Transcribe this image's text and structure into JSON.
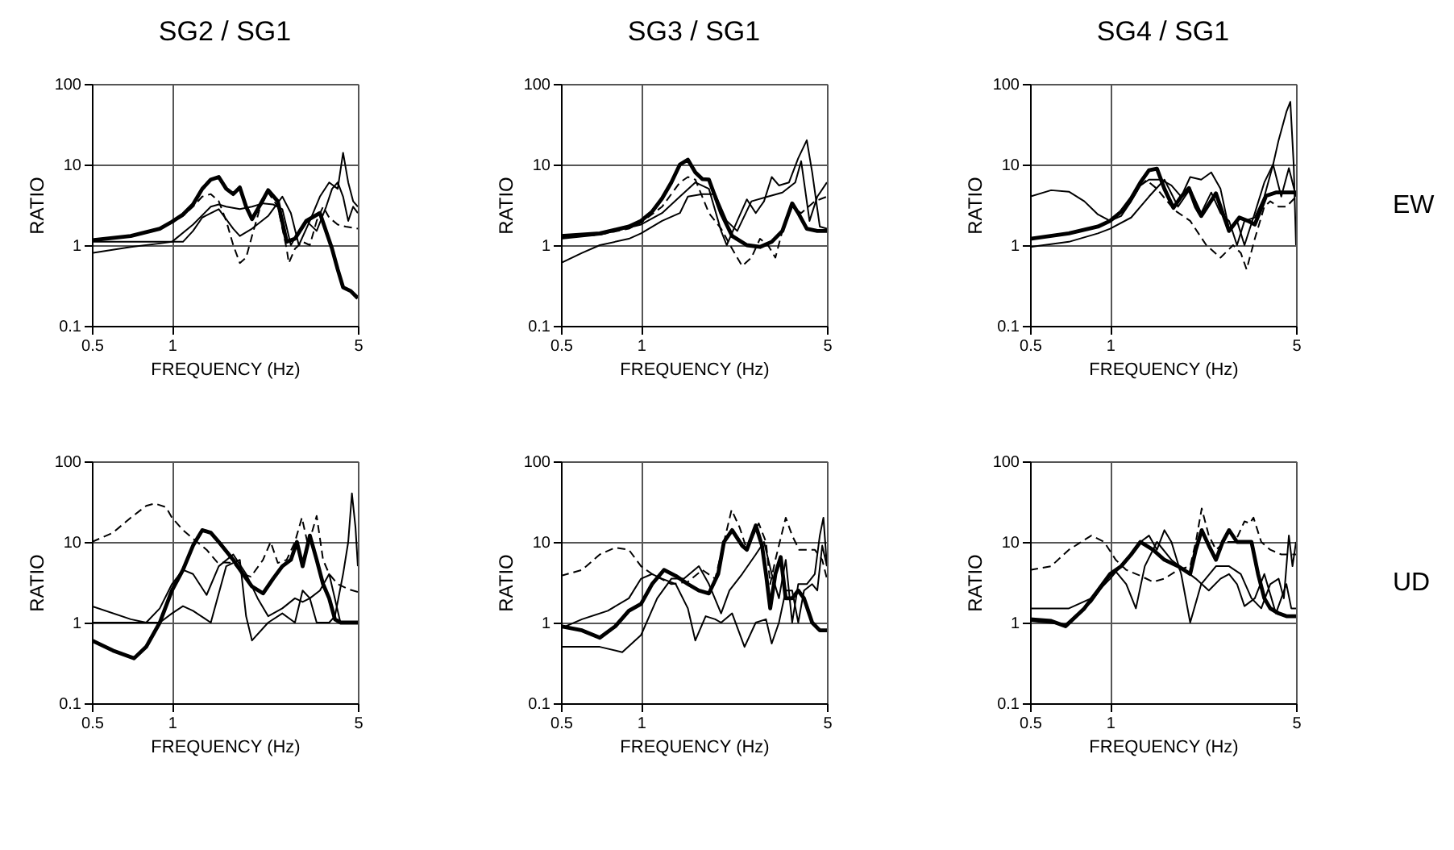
{
  "chart_data": [
    {
      "type": "line",
      "title": "SG2 / SG1",
      "xlabel": "FREQUENCY (Hz)",
      "ylabel": "RATIO",
      "log": "xy",
      "grid": true,
      "xlim": [
        0.5,
        5
      ],
      "ylim": [
        0.1,
        100
      ],
      "xticks": [
        0.5,
        1,
        5
      ],
      "yticks": [
        0.1,
        1,
        10,
        100
      ],
      "series": [
        {
          "color": "#000000",
          "line_style": "solid",
          "x": [
            0.5,
            0.7,
            0.9,
            1.0,
            1.1,
            1.2,
            1.3,
            1.4,
            1.5,
            1.6,
            1.7,
            1.8,
            1.9,
            2.0,
            2.15,
            2.3,
            2.5,
            2.7,
            2.9,
            3.2,
            3.6,
            4.0,
            4.2,
            4.4,
            4.7,
            5.0
          ],
          "values": [
            1.15,
            1.3,
            1.6,
            1.95,
            2.4,
            3.2,
            5.0,
            6.5,
            7.0,
            5.0,
            4.3,
            5.2,
            3.0,
            2.1,
            3.2,
            4.8,
            3.5,
            1.1,
            1.2,
            2.0,
            2.5,
            0.9,
            0.5,
            0.3,
            0.27,
            0.22
          ]
        },
        {
          "color": "#000000",
          "line_style": "dashed",
          "x": [
            0.5,
            0.7,
            0.9,
            1.0,
            1.1,
            1.2,
            1.3,
            1.4,
            1.5,
            1.6,
            1.7,
            1.8,
            1.9,
            2.0,
            2.15,
            2.3,
            2.5,
            2.7,
            2.75,
            2.9,
            3.1,
            3.3,
            3.5,
            3.7,
            3.9,
            4.2,
            4.5,
            5.0
          ],
          "values": [
            1.15,
            1.3,
            1.6,
            1.9,
            2.3,
            3.0,
            4.0,
            4.3,
            3.5,
            2.0,
            1.0,
            0.6,
            0.7,
            1.3,
            3.0,
            4.5,
            3.0,
            0.9,
            0.6,
            0.9,
            1.1,
            1.0,
            2.0,
            3.0,
            2.2,
            1.8,
            1.7,
            1.6
          ]
        },
        {
          "color": "#000000",
          "line_style": "solid",
          "x": [
            0.5,
            0.7,
            0.9,
            1.0,
            1.2,
            1.4,
            1.5,
            1.6,
            1.8,
            2.0,
            2.2,
            2.4,
            2.6,
            2.8,
            3.0,
            3.2,
            3.5,
            3.8,
            4.0,
            4.2,
            4.4,
            4.6,
            4.8,
            5.0
          ],
          "values": [
            0.8,
            0.95,
            1.05,
            1.1,
            1.8,
            3.0,
            3.2,
            3.0,
            2.8,
            3.0,
            3.3,
            3.2,
            2.8,
            1.0,
            1.5,
            2.0,
            1.5,
            3.0,
            5.0,
            6.0,
            4.0,
            2.0,
            3.0,
            2.5
          ]
        },
        {
          "color": "#000000",
          "line_style": "solid",
          "x": [
            0.5,
            0.8,
            1.0,
            1.1,
            1.2,
            1.3,
            1.5,
            1.7,
            1.8,
            2.0,
            2.3,
            2.6,
            2.8,
            3.0,
            3.3,
            3.6,
            3.9,
            4.2,
            4.4,
            4.6,
            4.8,
            5.0
          ],
          "values": [
            1.1,
            1.1,
            1.1,
            1.1,
            1.5,
            2.2,
            2.8,
            1.6,
            1.3,
            1.6,
            2.3,
            4.0,
            2.5,
            1.0,
            2.0,
            4.0,
            6.0,
            5.0,
            14.0,
            6.0,
            3.5,
            3.0
          ]
        }
      ]
    },
    {
      "type": "line",
      "title": "SG3 / SG1",
      "xlabel": "FREQUENCY (Hz)",
      "ylabel": "RATIO",
      "log": "xy",
      "grid": true,
      "xlim": [
        0.5,
        5
      ],
      "ylim": [
        0.1,
        100
      ],
      "xticks": [
        0.5,
        1,
        5
      ],
      "yticks": [
        0.1,
        1,
        10,
        100
      ],
      "series": [
        {
          "color": "#000000",
          "line_style": "solid",
          "x": [
            0.5,
            0.7,
            0.9,
            1.0,
            1.1,
            1.2,
            1.3,
            1.4,
            1.5,
            1.6,
            1.7,
            1.8,
            1.9,
            2.0,
            2.2,
            2.5,
            2.8,
            3.1,
            3.4,
            3.7,
            3.9,
            4.2,
            4.6,
            5.0
          ],
          "values": [
            1.3,
            1.4,
            1.7,
            2.0,
            2.6,
            3.8,
            6.0,
            10.0,
            11.5,
            8.0,
            6.6,
            6.5,
            4.0,
            2.5,
            1.3,
            1.0,
            0.95,
            1.1,
            1.5,
            3.3,
            2.5,
            1.6,
            1.5,
            1.5
          ]
        },
        {
          "color": "#000000",
          "line_style": "dashed",
          "x": [
            0.5,
            0.7,
            0.9,
            1.0,
            1.2,
            1.4,
            1.5,
            1.6,
            1.8,
            2.0,
            2.2,
            2.4,
            2.6,
            2.8,
            3.0,
            3.2,
            3.4,
            3.7,
            4.0,
            4.5,
            5.0
          ],
          "values": [
            1.25,
            1.35,
            1.6,
            1.9,
            3.0,
            6.0,
            7.0,
            6.5,
            2.5,
            1.6,
            0.9,
            0.55,
            0.7,
            1.2,
            1.0,
            0.7,
            1.5,
            3.0,
            2.5,
            3.5,
            4.0
          ]
        },
        {
          "color": "#000000",
          "line_style": "solid",
          "x": [
            0.5,
            0.6,
            0.7,
            0.9,
            1.0,
            1.2,
            1.4,
            1.5,
            1.7,
            1.9,
            2.1,
            2.3,
            2.6,
            3.0,
            3.4,
            3.8,
            4.0,
            4.3,
            4.6,
            5.0
          ],
          "values": [
            0.6,
            0.8,
            1.0,
            1.2,
            1.4,
            2.0,
            2.5,
            4.0,
            4.3,
            4.3,
            2.0,
            1.5,
            3.5,
            4.0,
            4.5,
            6.0,
            11.0,
            2.0,
            4.0,
            6.0
          ]
        },
        {
          "color": "#000000",
          "line_style": "solid",
          "x": [
            0.5,
            0.7,
            1.0,
            1.2,
            1.4,
            1.6,
            1.8,
            2.0,
            2.1,
            2.3,
            2.5,
            2.7,
            2.9,
            3.1,
            3.3,
            3.6,
            3.9,
            4.2,
            4.4,
            4.7,
            5.0
          ],
          "values": [
            1.2,
            1.35,
            1.8,
            2.5,
            4.0,
            6.0,
            5.0,
            1.5,
            1.0,
            2.0,
            3.7,
            2.5,
            3.5,
            7.0,
            5.5,
            6.0,
            12.0,
            20.0,
            8.0,
            1.7,
            1.6
          ]
        }
      ]
    },
    {
      "type": "line",
      "title": "SG4 / SG1",
      "xlabel": "FREQUENCY (Hz)",
      "ylabel": "RATIO",
      "log": "xy",
      "grid": true,
      "xlim": [
        0.5,
        5
      ],
      "ylim": [
        0.1,
        100
      ],
      "xticks": [
        0.5,
        1,
        5
      ],
      "yticks": [
        0.1,
        1,
        10,
        100
      ],
      "annotations": [
        "EW"
      ],
      "series": [
        {
          "color": "#000000",
          "line_style": "solid",
          "x": [
            0.5,
            0.7,
            0.9,
            1.0,
            1.1,
            1.2,
            1.3,
            1.4,
            1.5,
            1.6,
            1.73,
            1.85,
            1.98,
            2.1,
            2.2,
            2.35,
            2.5,
            2.65,
            2.8,
            3.06,
            3.3,
            3.5,
            3.86,
            4.2,
            4.6,
            5.0
          ],
          "values": [
            1.2,
            1.4,
            1.7,
            2.0,
            2.6,
            3.8,
            6.0,
            8.5,
            8.9,
            5.0,
            2.9,
            4.0,
            5.1,
            3.0,
            2.3,
            3.2,
            4.4,
            2.5,
            1.5,
            2.2,
            2.0,
            1.8,
            4.1,
            4.5,
            4.5,
            4.5
          ]
        },
        {
          "color": "#000000",
          "line_style": "dashed",
          "x": [
            0.5,
            0.7,
            0.9,
            1.0,
            1.1,
            1.2,
            1.3,
            1.37,
            1.5,
            1.75,
            2.0,
            2.3,
            2.6,
            2.9,
            3.1,
            3.26,
            3.5,
            3.8,
            4.0,
            4.3,
            4.6,
            5.0
          ],
          "values": [
            1.2,
            1.4,
            1.7,
            2.0,
            2.6,
            3.6,
            5.5,
            6.4,
            5.0,
            2.7,
            2.0,
            1.0,
            0.7,
            1.0,
            0.8,
            0.5,
            1.2,
            3.0,
            3.5,
            3.0,
            3.0,
            4.0
          ]
        },
        {
          "color": "#000000",
          "line_style": "solid",
          "x": [
            0.5,
            0.6,
            0.7,
            0.8,
            0.9,
            1.0,
            1.1,
            1.2,
            1.3,
            1.4,
            1.55,
            1.7,
            1.85,
            2.0,
            2.2,
            2.4,
            2.6,
            2.8,
            3.0,
            3.2,
            3.5,
            3.8,
            4.1,
            4.3,
            4.6,
            4.76,
            4.9,
            5.0
          ],
          "values": [
            4.0,
            4.8,
            4.6,
            3.5,
            2.4,
            2.0,
            2.3,
            3.5,
            5.5,
            6.5,
            6.5,
            5.5,
            4.0,
            7.0,
            6.5,
            8.0,
            5.0,
            1.6,
            2.0,
            1.0,
            2.5,
            6.0,
            10.0,
            20.0,
            45.0,
            60.0,
            10.0,
            1.0
          ]
        },
        {
          "color": "#000000",
          "line_style": "solid",
          "x": [
            0.5,
            0.7,
            0.9,
            1.0,
            1.2,
            1.4,
            1.6,
            1.8,
            2.0,
            2.2,
            2.4,
            2.6,
            2.8,
            3.0,
            3.2,
            3.5,
            3.8,
            4.1,
            4.4,
            4.7,
            5.0
          ],
          "values": [
            0.95,
            1.1,
            1.4,
            1.6,
            2.2,
            4.0,
            6.5,
            3.0,
            5.0,
            2.5,
            4.5,
            2.5,
            2.0,
            1.0,
            2.0,
            2.2,
            4.0,
            10.0,
            4.0,
            9.0,
            4.0
          ]
        }
      ]
    },
    {
      "type": "line",
      "xlabel": "FREQUENCY (Hz)",
      "ylabel": "RATIO",
      "log": "xy",
      "grid": true,
      "xlim": [
        0.5,
        5
      ],
      "ylim": [
        0.1,
        100
      ],
      "xticks": [
        0.5,
        1,
        5
      ],
      "yticks": [
        0.1,
        1,
        10,
        100
      ],
      "series": [
        {
          "color": "#000000",
          "line_style": "solid",
          "x": [
            0.5,
            0.6,
            0.72,
            0.8,
            0.9,
            1.0,
            1.1,
            1.2,
            1.3,
            1.4,
            1.5,
            1.7,
            1.85,
            2.0,
            2.2,
            2.4,
            2.6,
            2.8,
            2.95,
            3.1,
            3.3,
            3.5,
            3.7,
            3.9,
            4.1,
            4.3,
            5.0
          ],
          "values": [
            0.6,
            0.45,
            0.36,
            0.5,
            1.0,
            2.5,
            4.5,
            9.0,
            14,
            13,
            10,
            6.0,
            4.0,
            2.8,
            2.3,
            3.5,
            5.0,
            6.0,
            10,
            5.0,
            12,
            6.0,
            3.0,
            2.0,
            1.1,
            1.0,
            1.0
          ]
        },
        {
          "color": "#000000",
          "line_style": "dashed",
          "x": [
            0.5,
            0.6,
            0.7,
            0.8,
            0.86,
            0.95,
            1.0,
            1.1,
            1.2,
            1.35,
            1.48,
            1.7,
            1.85,
            1.98,
            2.2,
            2.35,
            2.5,
            2.7,
            2.9,
            3.08,
            3.25,
            3.5,
            3.7,
            3.9,
            4.2,
            4.6,
            5.0
          ],
          "values": [
            10,
            13,
            20,
            28,
            30,
            27,
            20,
            14,
            11,
            8,
            5.6,
            5.5,
            4.0,
            3.7,
            6.0,
            10,
            5.5,
            6.0,
            10,
            20,
            9,
            21,
            6.0,
            4.0,
            3.0,
            2.6,
            2.4
          ]
        },
        {
          "color": "#000000",
          "line_style": "solid",
          "x": [
            0.5,
            0.7,
            0.8,
            0.9,
            1.0,
            1.1,
            1.2,
            1.35,
            1.5,
            1.7,
            1.9,
            2.1,
            2.3,
            2.6,
            2.9,
            3.1,
            3.3,
            3.6,
            3.9,
            4.3,
            4.6,
            4.8,
            5.0
          ],
          "values": [
            1.6,
            1.1,
            1.0,
            1.5,
            3.0,
            4.5,
            4.0,
            2.2,
            5.0,
            7.0,
            4.0,
            2.0,
            1.2,
            1.5,
            2.0,
            1.8,
            2.0,
            2.5,
            4.0,
            1.0,
            1.0,
            1.0,
            1.0
          ]
        },
        {
          "color": "#000000",
          "line_style": "solid",
          "x": [
            0.5,
            0.7,
            0.9,
            1.0,
            1.1,
            1.2,
            1.4,
            1.6,
            1.8,
            1.9,
            2.0,
            2.3,
            2.6,
            2.9,
            3.1,
            3.3,
            3.5,
            3.7,
            3.9,
            4.1,
            4.4,
            4.6,
            4.75,
            4.9,
            5.0
          ],
          "values": [
            1.0,
            1.0,
            1.0,
            1.3,
            1.6,
            1.4,
            1.0,
            5.0,
            6.0,
            1.2,
            0.6,
            1.0,
            1.3,
            1.0,
            2.5,
            2.0,
            1.0,
            1.0,
            1.0,
            1.2,
            4.0,
            10,
            40,
            15,
            5
          ]
        }
      ]
    },
    {
      "type": "line",
      "xlabel": "FREQUENCY (Hz)",
      "ylabel": "RATIO",
      "log": "xy",
      "grid": true,
      "xlim": [
        0.5,
        5
      ],
      "ylim": [
        0.1,
        100
      ],
      "xticks": [
        0.5,
        1,
        5
      ],
      "yticks": [
        0.1,
        1,
        10,
        100
      ],
      "series": [
        {
          "color": "#000000",
          "line_style": "solid",
          "x": [
            0.5,
            0.6,
            0.7,
            0.8,
            0.9,
            1.0,
            1.1,
            1.22,
            1.35,
            1.5,
            1.65,
            1.8,
            1.95,
            2.05,
            2.2,
            2.4,
            2.5,
            2.7,
            2.85,
            2.95,
            3.06,
            3.2,
            3.35,
            3.5,
            3.7,
            3.9,
            4.1,
            4.4,
            4.7,
            5.0
          ],
          "values": [
            0.9,
            0.8,
            0.65,
            0.9,
            1.4,
            1.7,
            3.0,
            4.5,
            3.8,
            3.0,
            2.5,
            2.3,
            4.0,
            10,
            14,
            9,
            8,
            16,
            9,
            4,
            1.5,
            4,
            6.5,
            2.0,
            2.0,
            2.5,
            2.0,
            1.0,
            0.8,
            0.8
          ]
        },
        {
          "color": "#000000",
          "line_style": "dashed",
          "x": [
            0.5,
            0.6,
            0.7,
            0.8,
            0.9,
            1.0,
            1.1,
            1.3,
            1.5,
            1.7,
            1.9,
            2.05,
            2.19,
            2.35,
            2.5,
            2.77,
            2.95,
            3.06,
            3.2,
            3.5,
            3.7,
            3.93,
            4.2,
            4.5,
            4.8,
            5.0
          ],
          "values": [
            3.8,
            4.5,
            7.0,
            8.5,
            8.0,
            5.0,
            4.0,
            3.0,
            3.2,
            4.5,
            3.5,
            10,
            25,
            15,
            8,
            17,
            10,
            3,
            6,
            20,
            12,
            8,
            8,
            8,
            6,
            3.5
          ]
        },
        {
          "color": "#000000",
          "line_style": "solid",
          "x": [
            0.5,
            0.6,
            0.75,
            0.9,
            1.0,
            1.1,
            1.2,
            1.35,
            1.5,
            1.6,
            1.75,
            1.9,
            2.0,
            2.2,
            2.45,
            2.7,
            2.95,
            3.1,
            3.3,
            3.5,
            3.7,
            3.9,
            4.1,
            4.4,
            4.6,
            4.8,
            5.0
          ],
          "values": [
            0.85,
            1.1,
            1.4,
            2.0,
            3.5,
            4.0,
            3.5,
            3.0,
            1.5,
            0.6,
            1.2,
            1.1,
            1.0,
            1.3,
            0.5,
            1.0,
            1.1,
            0.55,
            1.0,
            2.5,
            2.5,
            1.0,
            2.5,
            3.0,
            2.5,
            9.0,
            5.0
          ]
        },
        {
          "color": "#000000",
          "line_style": "solid",
          "x": [
            0.5,
            0.7,
            0.85,
            1.0,
            1.15,
            1.3,
            1.45,
            1.65,
            1.8,
            2.0,
            2.15,
            2.4,
            2.7,
            2.9,
            3.1,
            3.3,
            3.5,
            3.7,
            3.9,
            4.2,
            4.5,
            4.7,
            4.85,
            5.0
          ],
          "values": [
            0.5,
            0.5,
            0.43,
            0.7,
            2.0,
            3.5,
            3.5,
            5.0,
            3.0,
            1.3,
            2.5,
            4.0,
            7.0,
            10,
            4.0,
            2.0,
            6.0,
            1.0,
            3.0,
            3.0,
            4.0,
            12,
            20,
            5
          ]
        }
      ]
    },
    {
      "type": "line",
      "xlabel": "FREQUENCY (Hz)",
      "ylabel": "RATIO",
      "log": "xy",
      "grid": true,
      "xlim": [
        0.5,
        5
      ],
      "ylim": [
        0.1,
        100
      ],
      "xticks": [
        0.5,
        1,
        5
      ],
      "yticks": [
        0.1,
        1,
        10,
        100
      ],
      "annotations": [
        "UD"
      ],
      "series": [
        {
          "color": "#000000",
          "line_style": "solid",
          "x": [
            0.5,
            0.6,
            0.68,
            0.8,
            0.9,
            1.0,
            1.1,
            1.2,
            1.3,
            1.45,
            1.6,
            1.8,
            2.0,
            2.1,
            2.21,
            2.35,
            2.5,
            2.65,
            2.8,
            3.0,
            3.2,
            3.4,
            3.6,
            3.8,
            4.0,
            4.3,
            4.6,
            5.0
          ],
          "values": [
            1.1,
            1.05,
            0.9,
            1.5,
            2.5,
            4.0,
            5.0,
            7.0,
            10,
            8,
            6,
            5,
            4,
            8,
            14,
            9,
            6,
            10,
            14,
            10,
            10,
            10,
            4,
            2,
            1.5,
            1.3,
            1.2,
            1.2
          ]
        },
        {
          "color": "#000000",
          "line_style": "dashed",
          "x": [
            0.5,
            0.6,
            0.7,
            0.85,
            0.95,
            1.05,
            1.15,
            1.3,
            1.45,
            1.6,
            1.8,
            2.0,
            2.1,
            2.21,
            2.35,
            2.5,
            2.7,
            2.95,
            3.2,
            3.35,
            3.46,
            3.7,
            4.0,
            4.4,
            4.7,
            5.0
          ],
          "values": [
            4.5,
            5.0,
            8.0,
            12,
            10,
            6.0,
            4.5,
            3.8,
            3.2,
            3.5,
            4.5,
            5.0,
            10,
            26,
            12,
            8,
            10,
            10,
            18,
            17,
            20,
            10,
            8,
            7,
            7,
            7
          ]
        },
        {
          "color": "#000000",
          "line_style": "solid",
          "x": [
            0.5,
            0.7,
            0.85,
            1.0,
            1.15,
            1.3,
            1.4,
            1.5,
            1.6,
            1.7,
            1.85,
            2.0,
            2.2,
            2.5,
            2.8,
            3.1,
            3.4,
            3.7,
            4.0,
            4.3,
            4.5,
            4.7,
            4.85,
            5.0
          ],
          "values": [
            1.5,
            1.5,
            2.0,
            3.5,
            6.0,
            10,
            12,
            8,
            14,
            10,
            4,
            1.0,
            3.0,
            5.0,
            5.0,
            4.0,
            2.0,
            1.5,
            3.0,
            3.5,
            2.0,
            12,
            5,
            10
          ]
        },
        {
          "color": "#000000",
          "line_style": "solid",
          "x": [
            0.5,
            0.68,
            0.85,
            1.0,
            1.05,
            1.15,
            1.25,
            1.35,
            1.5,
            1.7,
            1.9,
            2.1,
            2.35,
            2.6,
            2.8,
            3.0,
            3.2,
            3.5,
            3.8,
            4.2,
            4.6,
            4.8,
            5.0
          ],
          "values": [
            1.05,
            0.95,
            1.8,
            3.8,
            4.3,
            3.0,
            1.5,
            5.0,
            10,
            6.0,
            4.5,
            3.5,
            2.5,
            3.5,
            4.0,
            3.0,
            1.6,
            2.0,
            4.0,
            1.3,
            3.0,
            1.5,
            1.5
          ]
        }
      ]
    }
  ]
}
